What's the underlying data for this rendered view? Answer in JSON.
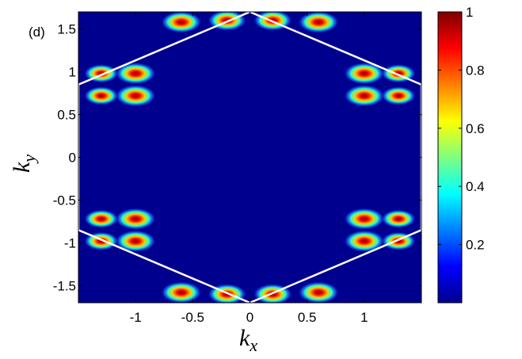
{
  "chart_data": {
    "type": "heatmap",
    "panel_label": "(d)",
    "xlabel_main": "k",
    "xlabel_sub": "x",
    "ylabel_main": "k",
    "ylabel_sub": "y",
    "xlim": [
      -1.5,
      1.5
    ],
    "ylim": [
      -1.7,
      1.7
    ],
    "x_ticks": [
      -1,
      -0.5,
      0,
      0.5,
      1
    ],
    "x_tick_labels": [
      "-1",
      "-0.5",
      "0",
      "0.5",
      "1"
    ],
    "y_ticks": [
      -1.5,
      -1,
      -0.5,
      0,
      0.5,
      1,
      1.5
    ],
    "y_tick_labels": [
      "-1.5",
      "-1",
      "-0.5",
      "0",
      "0.5",
      "1",
      "1.5"
    ],
    "colorbar": {
      "range": [
        0,
        1
      ],
      "ticks": [
        0.2,
        0.4,
        0.6,
        0.8,
        1
      ],
      "tick_labels": [
        "0.2",
        "0.4",
        "0.6",
        "0.8",
        "1"
      ],
      "colormap": "jet"
    },
    "brillouin_zone_hexagon": {
      "vertices": [
        [
          0,
          1.7
        ],
        [
          1.5,
          0.85
        ],
        [
          1.5,
          -0.85
        ],
        [
          0,
          -1.7
        ],
        [
          -1.5,
          -0.85
        ],
        [
          -1.5,
          0.85
        ]
      ],
      "color": "#ffffff"
    },
    "intensity_lobes": [
      {
        "x": -0.6,
        "y": 1.58,
        "value": 1.0
      },
      {
        "x": -0.2,
        "y": 1.6,
        "value": 0.95
      },
      {
        "x": 0.2,
        "y": 1.6,
        "value": 0.95
      },
      {
        "x": 0.6,
        "y": 1.58,
        "value": 1.0
      },
      {
        "x": -0.6,
        "y": -1.58,
        "value": 1.0
      },
      {
        "x": -0.2,
        "y": -1.6,
        "value": 0.95
      },
      {
        "x": 0.2,
        "y": -1.6,
        "value": 0.95
      },
      {
        "x": 0.6,
        "y": -1.58,
        "value": 1.0
      },
      {
        "x": -1.0,
        "y": 0.98,
        "value": 1.0
      },
      {
        "x": -1.3,
        "y": 0.98,
        "value": 0.85
      },
      {
        "x": -1.0,
        "y": 0.72,
        "value": 1.0
      },
      {
        "x": -1.3,
        "y": 0.72,
        "value": 0.85
      },
      {
        "x": 1.0,
        "y": 0.98,
        "value": 1.0
      },
      {
        "x": 1.3,
        "y": 0.98,
        "value": 0.85
      },
      {
        "x": 1.0,
        "y": 0.72,
        "value": 1.0
      },
      {
        "x": 1.3,
        "y": 0.72,
        "value": 0.85
      },
      {
        "x": -1.0,
        "y": -0.98,
        "value": 1.0
      },
      {
        "x": -1.3,
        "y": -0.98,
        "value": 0.85
      },
      {
        "x": -1.0,
        "y": -0.72,
        "value": 1.0
      },
      {
        "x": -1.3,
        "y": -0.72,
        "value": 0.85
      },
      {
        "x": 1.0,
        "y": -0.98,
        "value": 1.0
      },
      {
        "x": 1.3,
        "y": -0.98,
        "value": 0.85
      },
      {
        "x": 1.0,
        "y": -0.72,
        "value": 1.0
      },
      {
        "x": 1.3,
        "y": -0.72,
        "value": 0.85
      }
    ],
    "background_value": 0.0
  }
}
